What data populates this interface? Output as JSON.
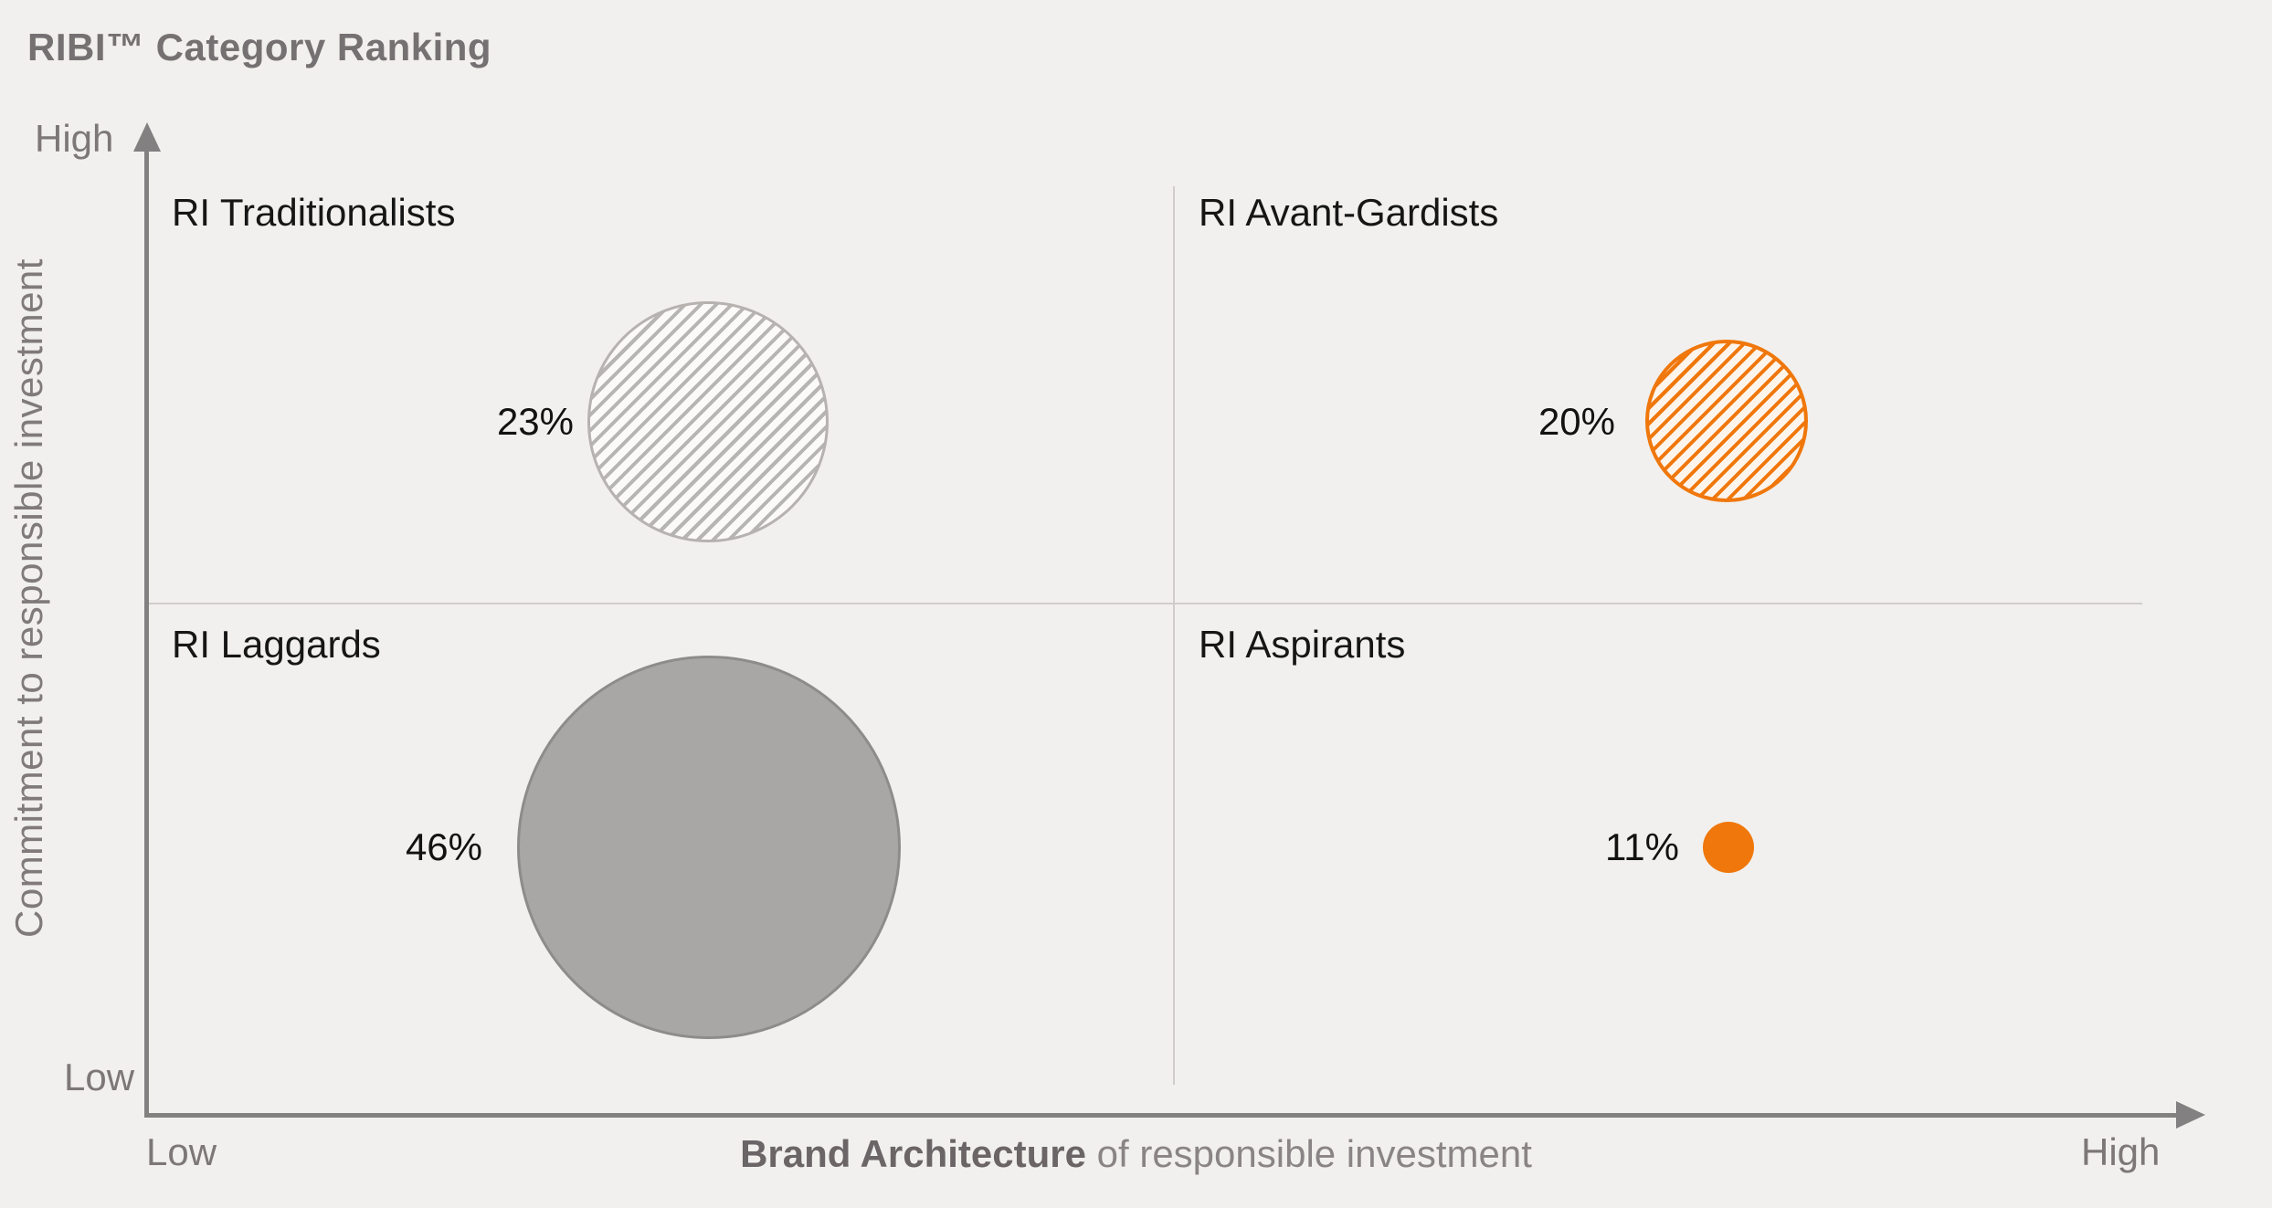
{
  "title": "RIBI™ Category Ranking",
  "colors": {
    "background": "#f1f0ee",
    "axis": "#828080",
    "divider": "#d0cdcb",
    "orange": "#f0770b",
    "gray_bubble": "#a8a7a6",
    "text_dark": "#161616",
    "text_gray": "#7d7778"
  },
  "y_axis": {
    "label": "Commitment to responsible investment",
    "high": "High",
    "low": "Low"
  },
  "x_axis": {
    "label_bold": "Brand Architecture",
    "label_rest": " of responsible  investment",
    "high": "High",
    "low": "Low"
  },
  "quadrants": [
    {
      "name": "RI Traditionalists",
      "value": "23%",
      "position": "top-left",
      "bubble_style": "hatched-gray"
    },
    {
      "name": "RI Avant-Gardists",
      "value": "20%",
      "position": "top-right",
      "bubble_style": "hatched-orange"
    },
    {
      "name": "RI Laggards",
      "value": "46%",
      "position": "bottom-left",
      "bubble_style": "solid-gray"
    },
    {
      "name": "RI Aspirants",
      "value": "11%",
      "position": "bottom-right",
      "bubble_style": "solid-orange"
    }
  ],
  "chart_data": {
    "type": "scatter",
    "subtype": "quadrant-bubble",
    "title": "RIBI™ Category Ranking",
    "xlabel": "Brand Architecture of responsible investment",
    "ylabel": "Commitment to responsible investment",
    "x_axis_ends": [
      "Low",
      "High"
    ],
    "y_axis_ends": [
      "Low",
      "High"
    ],
    "grid": "quadrant dividers only",
    "legend": null,
    "points": [
      {
        "label": "RI Traditionalists",
        "value_pct": 23,
        "x": 0.27,
        "y": 0.71,
        "quadrant": "top-left",
        "fill": "hatched",
        "color": "#b6b2b0"
      },
      {
        "label": "RI Avant-Gardists",
        "value_pct": 20,
        "x": 0.77,
        "y": 0.71,
        "quadrant": "top-right",
        "fill": "hatched",
        "color": "#f0770b"
      },
      {
        "label": "RI Laggards",
        "value_pct": 46,
        "x": 0.27,
        "y": 0.27,
        "quadrant": "bottom-left",
        "fill": "solid",
        "color": "#a8a7a6"
      },
      {
        "label": "RI Aspirants",
        "value_pct": 11,
        "x": 0.77,
        "y": 0.27,
        "quadrant": "bottom-right",
        "fill": "solid",
        "color": "#f0770b"
      }
    ]
  }
}
